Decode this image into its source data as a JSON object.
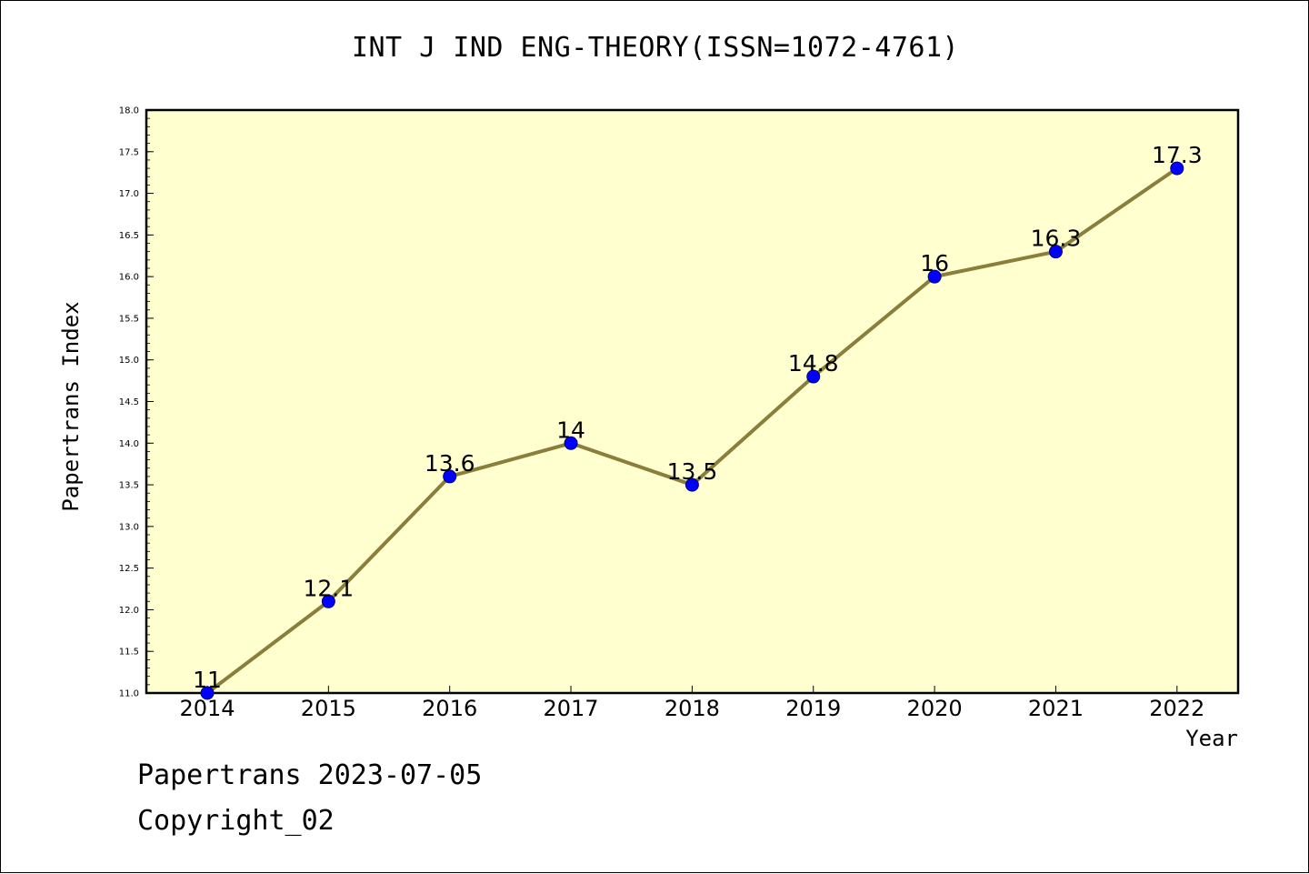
{
  "chart_data": {
    "type": "line",
    "title": "INT J IND ENG-THEORY(ISSN=1072-4761)",
    "xlabel": "Year",
    "ylabel": "Papertrans Index",
    "x": [
      "2014",
      "2015",
      "2016",
      "2017",
      "2018",
      "2019",
      "2020",
      "2021",
      "2022"
    ],
    "series": [
      {
        "values": [
          11,
          12.1,
          13.6,
          14,
          13.5,
          14.8,
          16,
          16.3,
          17.3
        ],
        "labels": [
          "11",
          "12.1",
          "13.6",
          "14",
          "13.5",
          "14.8",
          "16",
          "16.3",
          "17.3"
        ]
      }
    ],
    "ylim": [
      11.0,
      18.0
    ],
    "yticks": [
      "11.0",
      "11.5",
      "12.0",
      "12.5",
      "13.0",
      "13.5",
      "14.0",
      "14.5",
      "15.0",
      "15.5",
      "16.0",
      "16.5",
      "17.0",
      "17.5",
      "18.0"
    ],
    "grid": false,
    "colors": {
      "plot_background": "#ffffd0",
      "line": "#8b7d3a",
      "marker": "#0000ff"
    }
  },
  "footer": {
    "date_text": "Papertrans 2023-07-05",
    "copyright_text": "Copyright_02"
  }
}
